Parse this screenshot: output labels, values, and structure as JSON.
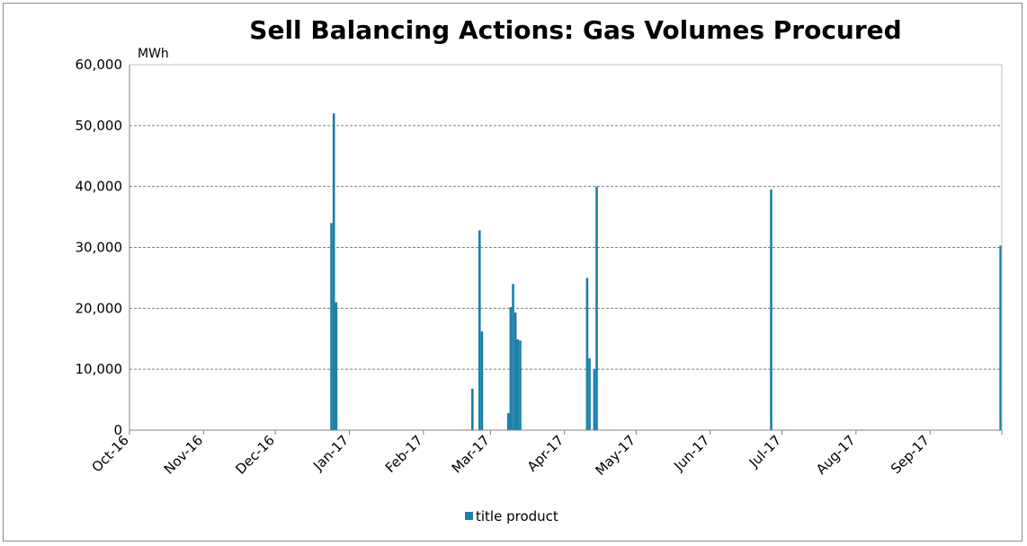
{
  "chart_data": {
    "type": "bar",
    "title": "Sell Balancing Actions: Gas Volumes Procured",
    "ylabel": "MWh",
    "xlabel": "",
    "ylim": [
      0,
      60000
    ],
    "yticks": [
      0,
      10000,
      20000,
      30000,
      40000,
      50000,
      60000
    ],
    "ytick_labels": [
      "0",
      "10,000",
      "20,000",
      "30,000",
      "40,000",
      "50,000",
      "60,000"
    ],
    "xlim": [
      "2016-10-01",
      "2017-10-01"
    ],
    "xticks": [
      "2016-10-01",
      "2016-11-01",
      "2016-12-01",
      "2017-01-01",
      "2017-02-01",
      "2017-03-01",
      "2017-04-01",
      "2017-05-01",
      "2017-06-01",
      "2017-07-01",
      "2017-08-01",
      "2017-09-01"
    ],
    "xtick_labels": [
      "Oct-16",
      "Nov-16",
      "Dec-16",
      "Jan-17",
      "Feb-17",
      "Mar-17",
      "Apr-17",
      "May-17",
      "Jun-17",
      "Jul-17",
      "Aug-17",
      "Sep-17"
    ],
    "grid": "horizontal dashed",
    "legend_position": "bottom",
    "color": "#1a7fa8",
    "series": [
      {
        "name": "title product",
        "x": [
          "2016-12-24",
          "2016-12-25",
          "2016-12-26",
          "2017-02-21",
          "2017-02-24",
          "2017-02-25",
          "2017-03-08",
          "2017-03-09",
          "2017-03-10",
          "2017-03-11",
          "2017-03-12",
          "2017-03-13",
          "2017-04-10",
          "2017-04-11",
          "2017-04-13",
          "2017-04-14",
          "2017-06-26",
          "2017-09-30"
        ],
        "values": [
          34000,
          52000,
          21000,
          6800,
          32800,
          16200,
          2800,
          20200,
          24000,
          19300,
          14900,
          14700,
          25000,
          11800,
          10000,
          40000,
          39500,
          30300
        ]
      }
    ]
  }
}
